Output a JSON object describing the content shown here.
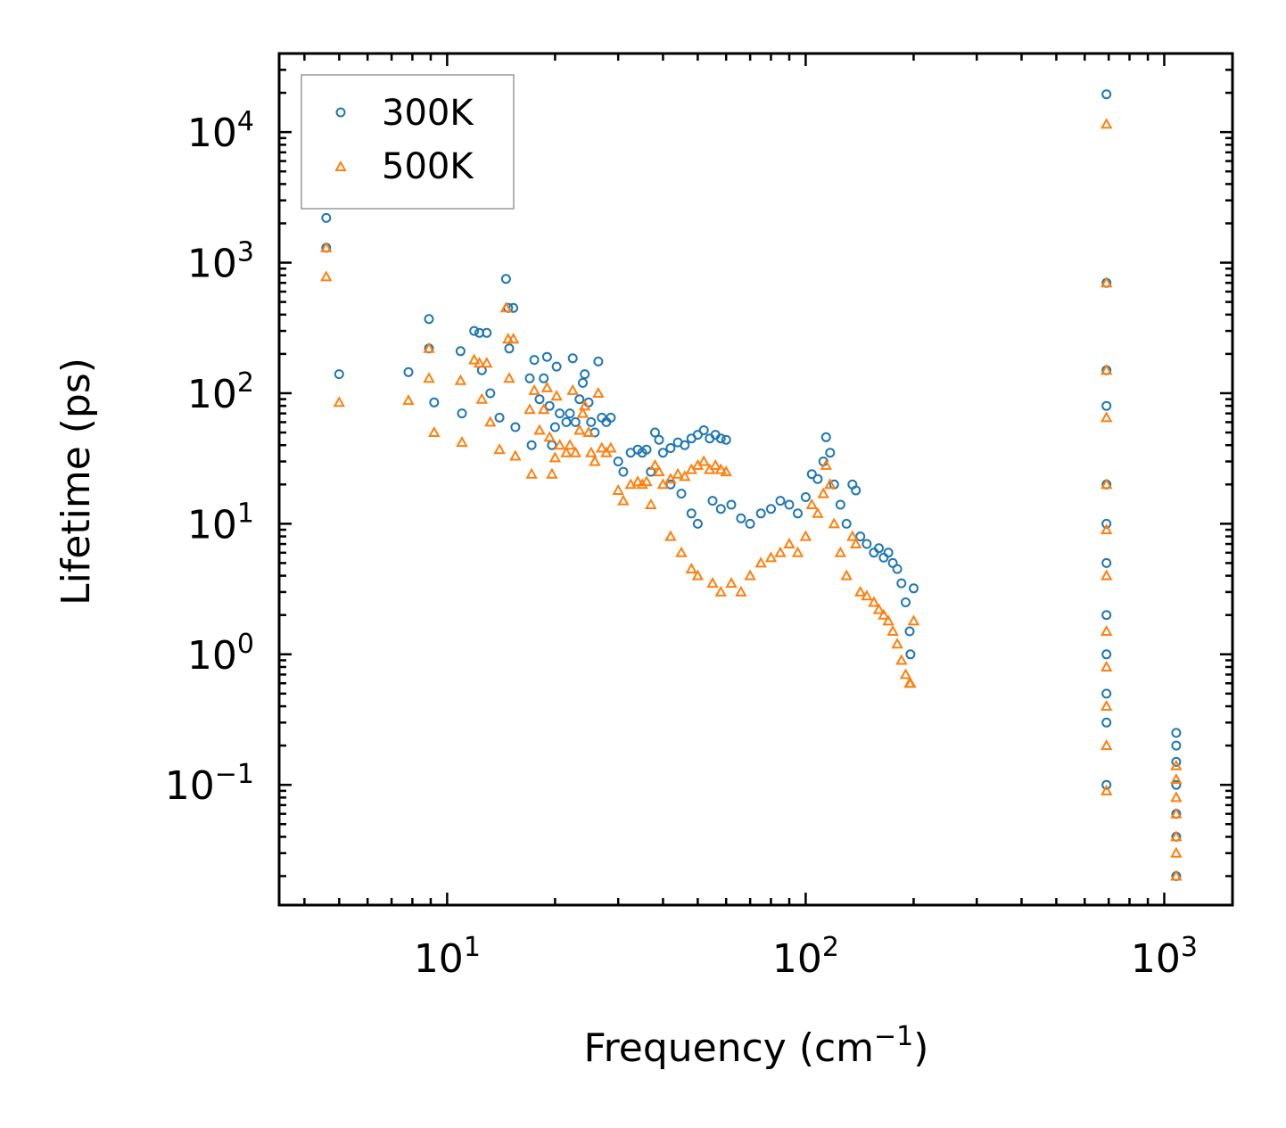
{
  "chart_data": {
    "type": "scatter",
    "title": "",
    "xlabel": "Frequency (cm",
    "xlabel_sup": "−1",
    "xlabel_close": ")",
    "ylabel": "Lifetime (ps)",
    "xscale": "log",
    "yscale": "log",
    "xlim": [
      3.4,
      1550
    ],
    "ylim": [
      0.012,
      40000
    ],
    "x_ticks": [
      {
        "value": 10,
        "base": "10",
        "exp": "1"
      },
      {
        "value": 100,
        "base": "10",
        "exp": "2"
      },
      {
        "value": 1000,
        "base": "10",
        "exp": "3"
      }
    ],
    "y_ticks": [
      {
        "value": 0.1,
        "base": "10",
        "exp": "−1"
      },
      {
        "value": 1,
        "base": "10",
        "exp": "0"
      },
      {
        "value": 10,
        "base": "10",
        "exp": "1"
      },
      {
        "value": 100,
        "base": "10",
        "exp": "2"
      },
      {
        "value": 1000,
        "base": "10",
        "exp": "3"
      },
      {
        "value": 10000,
        "base": "10",
        "exp": "4"
      }
    ],
    "legend_position": "top-left",
    "series": [
      {
        "name": "300K",
        "marker": "circle",
        "color": "#1f77b4",
        "points": [
          [
            4.6,
            2200
          ],
          [
            4.6,
            1300
          ],
          [
            5.0,
            140
          ],
          [
            7.8,
            145
          ],
          [
            8.9,
            370
          ],
          [
            8.9,
            220
          ],
          [
            9.2,
            85
          ],
          [
            10.9,
            210
          ],
          [
            11.0,
            70
          ],
          [
            11.9,
            300
          ],
          [
            12.3,
            290
          ],
          [
            12.5,
            150
          ],
          [
            12.9,
            290
          ],
          [
            13.2,
            100
          ],
          [
            14.0,
            65
          ],
          [
            14.6,
            750
          ],
          [
            14.8,
            450
          ],
          [
            14.9,
            220
          ],
          [
            15.3,
            450
          ],
          [
            15.5,
            55
          ],
          [
            17.0,
            130
          ],
          [
            17.2,
            40
          ],
          [
            17.5,
            180
          ],
          [
            18.1,
            90
          ],
          [
            18.6,
            130
          ],
          [
            19.0,
            190
          ],
          [
            19.3,
            80
          ],
          [
            19.6,
            40
          ],
          [
            20.0,
            55
          ],
          [
            20.2,
            160
          ],
          [
            20.6,
            70
          ],
          [
            21.5,
            60
          ],
          [
            22.0,
            70
          ],
          [
            22.4,
            185
          ],
          [
            22.8,
            60
          ],
          [
            23.4,
            90
          ],
          [
            23.9,
            120
          ],
          [
            24.2,
            140
          ],
          [
            24.8,
            85
          ],
          [
            25.2,
            60
          ],
          [
            25.8,
            50
          ],
          [
            26.4,
            175
          ],
          [
            27.0,
            65
          ],
          [
            27.8,
            60
          ],
          [
            28.6,
            65
          ],
          [
            30.0,
            30
          ],
          [
            31.0,
            25
          ],
          [
            32.5,
            35
          ],
          [
            34.0,
            37
          ],
          [
            35.0,
            35
          ],
          [
            36.0,
            37
          ],
          [
            37.0,
            25
          ],
          [
            38.0,
            50
          ],
          [
            39.0,
            44
          ],
          [
            40.0,
            35
          ],
          [
            42.0,
            38
          ],
          [
            44.0,
            42
          ],
          [
            46.0,
            40
          ],
          [
            48.0,
            45
          ],
          [
            50.0,
            48
          ],
          [
            52.0,
            52
          ],
          [
            54.0,
            45
          ],
          [
            56.0,
            48
          ],
          [
            58.0,
            45
          ],
          [
            60.0,
            44
          ],
          [
            42.0,
            20
          ],
          [
            45.0,
            17
          ],
          [
            48.0,
            12
          ],
          [
            50.0,
            10
          ],
          [
            55.0,
            15
          ],
          [
            58.0,
            13
          ],
          [
            62.0,
            14
          ],
          [
            66.0,
            11
          ],
          [
            70.0,
            10
          ],
          [
            75.0,
            12
          ],
          [
            80.0,
            13
          ],
          [
            85.0,
            15
          ],
          [
            90.0,
            14
          ],
          [
            95.0,
            12
          ],
          [
            100.0,
            16
          ],
          [
            104.0,
            24
          ],
          [
            108.0,
            22
          ],
          [
            112.0,
            30
          ],
          [
            114.0,
            46
          ],
          [
            117.0,
            35
          ],
          [
            120.0,
            20
          ],
          [
            125.0,
            14
          ],
          [
            130.0,
            10
          ],
          [
            135.0,
            20
          ],
          [
            138.0,
            18
          ],
          [
            142.0,
            8
          ],
          [
            148.0,
            7
          ],
          [
            155.0,
            6
          ],
          [
            160.0,
            6.5
          ],
          [
            165.0,
            5.5
          ],
          [
            170.0,
            6
          ],
          [
            175.0,
            5
          ],
          [
            180.0,
            4.5
          ],
          [
            185.0,
            3.5
          ],
          [
            190.0,
            2.5
          ],
          [
            195.0,
            1.5
          ],
          [
            196.0,
            1.0
          ],
          [
            200.0,
            3.2
          ],
          [
            690,
            19500
          ],
          [
            690,
            700
          ],
          [
            690,
            150
          ],
          [
            690,
            80
          ],
          [
            690,
            20
          ],
          [
            690,
            10
          ],
          [
            690,
            5
          ],
          [
            690,
            2
          ],
          [
            690,
            1
          ],
          [
            690,
            0.5
          ],
          [
            690,
            0.3
          ],
          [
            690,
            0.1
          ],
          [
            1080,
            0.25
          ],
          [
            1080,
            0.2
          ],
          [
            1080,
            0.15
          ],
          [
            1080,
            0.1
          ],
          [
            1080,
            0.06
          ],
          [
            1080,
            0.04
          ],
          [
            1080,
            0.02
          ]
        ]
      },
      {
        "name": "500K",
        "marker": "triangle",
        "color": "#ff7f0e",
        "points": [
          [
            4.6,
            1300
          ],
          [
            4.6,
            780
          ],
          [
            5.0,
            85
          ],
          [
            7.8,
            88
          ],
          [
            8.9,
            220
          ],
          [
            8.9,
            130
          ],
          [
            9.2,
            50
          ],
          [
            10.9,
            125
          ],
          [
            11.0,
            42
          ],
          [
            11.9,
            180
          ],
          [
            12.3,
            170
          ],
          [
            12.5,
            90
          ],
          [
            12.9,
            170
          ],
          [
            13.2,
            60
          ],
          [
            14.0,
            37
          ],
          [
            14.6,
            450
          ],
          [
            14.8,
            260
          ],
          [
            14.9,
            130
          ],
          [
            15.3,
            260
          ],
          [
            15.5,
            33
          ],
          [
            17.0,
            75
          ],
          [
            17.2,
            24
          ],
          [
            17.5,
            105
          ],
          [
            18.1,
            52
          ],
          [
            18.6,
            75
          ],
          [
            19.0,
            110
          ],
          [
            19.3,
            46
          ],
          [
            19.6,
            24
          ],
          [
            20.0,
            32
          ],
          [
            20.2,
            95
          ],
          [
            20.6,
            40
          ],
          [
            21.5,
            35
          ],
          [
            22.0,
            40
          ],
          [
            22.4,
            105
          ],
          [
            22.8,
            35
          ],
          [
            23.4,
            52
          ],
          [
            23.9,
            70
          ],
          [
            24.2,
            80
          ],
          [
            24.8,
            50
          ],
          [
            25.2,
            35
          ],
          [
            25.8,
            30
          ],
          [
            26.4,
            100
          ],
          [
            27.0,
            38
          ],
          [
            27.8,
            35
          ],
          [
            28.6,
            38
          ],
          [
            30.0,
            18
          ],
          [
            31.0,
            15
          ],
          [
            32.5,
            20
          ],
          [
            34.0,
            21
          ],
          [
            35.0,
            20
          ],
          [
            36.0,
            21
          ],
          [
            37.0,
            14
          ],
          [
            38.0,
            28
          ],
          [
            39.0,
            25
          ],
          [
            40.0,
            20
          ],
          [
            42.0,
            22
          ],
          [
            44.0,
            24
          ],
          [
            46.0,
            23
          ],
          [
            48.0,
            26
          ],
          [
            50.0,
            28
          ],
          [
            52.0,
            30
          ],
          [
            54.0,
            26
          ],
          [
            56.0,
            28
          ],
          [
            58.0,
            26
          ],
          [
            60.0,
            25
          ],
          [
            42.0,
            8
          ],
          [
            45.0,
            6
          ],
          [
            48.0,
            4.5
          ],
          [
            50.0,
            4
          ],
          [
            55.0,
            3.5
          ],
          [
            58.0,
            3
          ],
          [
            62.0,
            3.5
          ],
          [
            66.0,
            3
          ],
          [
            70.0,
            4
          ],
          [
            75.0,
            5
          ],
          [
            80.0,
            5.5
          ],
          [
            85.0,
            6
          ],
          [
            90.0,
            7
          ],
          [
            95.0,
            6
          ],
          [
            100.0,
            8
          ],
          [
            104.0,
            14
          ],
          [
            108.0,
            12
          ],
          [
            112.0,
            17
          ],
          [
            114.0,
            28
          ],
          [
            117.0,
            20
          ],
          [
            120.0,
            10
          ],
          [
            125.0,
            6
          ],
          [
            130.0,
            4
          ],
          [
            135.0,
            8
          ],
          [
            138.0,
            7
          ],
          [
            142.0,
            3
          ],
          [
            148.0,
            2.8
          ],
          [
            155.0,
            2.5
          ],
          [
            160.0,
            2.2
          ],
          [
            165.0,
            2
          ],
          [
            170.0,
            1.8
          ],
          [
            175.0,
            1.5
          ],
          [
            180.0,
            1.2
          ],
          [
            185.0,
            0.9
          ],
          [
            190.0,
            0.7
          ],
          [
            195.0,
            0.6
          ],
          [
            196.0,
            0.6
          ],
          [
            200.0,
            1.8
          ],
          [
            690,
            11500
          ],
          [
            690,
            700
          ],
          [
            690,
            150
          ],
          [
            690,
            65
          ],
          [
            690,
            20
          ],
          [
            690,
            9
          ],
          [
            690,
            4
          ],
          [
            690,
            1.5
          ],
          [
            690,
            0.8
          ],
          [
            690,
            0.4
          ],
          [
            690,
            0.2
          ],
          [
            690,
            0.09
          ],
          [
            1080,
            0.14
          ],
          [
            1080,
            0.11
          ],
          [
            1080,
            0.08
          ],
          [
            1080,
            0.06
          ],
          [
            1080,
            0.04
          ],
          [
            1080,
            0.03
          ],
          [
            1080,
            0.02
          ]
        ]
      }
    ]
  }
}
